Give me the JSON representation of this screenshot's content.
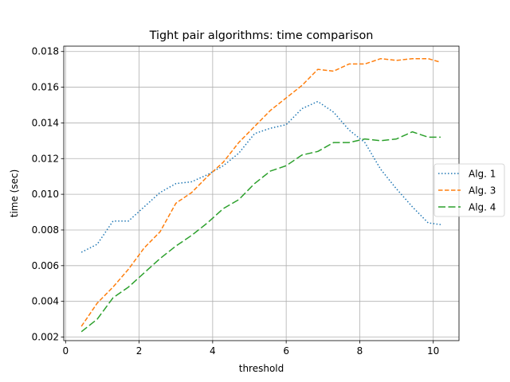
{
  "chart_data": {
    "type": "line",
    "title": "Tight pair algorithms: time comparison",
    "xlabel": "threshold",
    "ylabel": "time (sec)",
    "xlim": [
      -0.05,
      10.7
    ],
    "ylim": [
      0.0018,
      0.0183
    ],
    "grid": true,
    "legend_position": "right",
    "xticks": [
      0,
      2,
      4,
      6,
      8,
      10
    ],
    "xtick_labels": [
      "0",
      "2",
      "4",
      "6",
      "8",
      "10"
    ],
    "yticks": [
      0.002,
      0.004,
      0.006,
      0.008,
      0.01,
      0.012,
      0.014,
      0.016,
      0.018
    ],
    "ytick_labels": [
      "0.002",
      "0.004",
      "0.006",
      "0.008",
      "0.010",
      "0.012",
      "0.014",
      "0.016",
      "0.018"
    ],
    "series": [
      {
        "name": "Alg. 1",
        "color": "#1f77b4",
        "dash": "dotted",
        "x": [
          0.43,
          0.86,
          1.29,
          1.71,
          2.14,
          2.57,
          3.0,
          3.43,
          3.86,
          4.29,
          4.71,
          5.14,
          5.57,
          6.0,
          6.43,
          6.86,
          7.29,
          7.71,
          8.14,
          8.57,
          9.0,
          9.43,
          9.86,
          10.2
        ],
        "y": [
          0.00675,
          0.0072,
          0.0085,
          0.0085,
          0.0093,
          0.0101,
          0.0106,
          0.0107,
          0.0111,
          0.0116,
          0.0123,
          0.0134,
          0.0137,
          0.0139,
          0.0148,
          0.0152,
          0.0146,
          0.0136,
          0.0129,
          0.0114,
          0.0103,
          0.0093,
          0.0084,
          0.0083
        ]
      },
      {
        "name": "Alg. 3",
        "color": "#ff7f0e",
        "dash": "dashed",
        "x": [
          0.43,
          0.86,
          1.29,
          1.71,
          2.14,
          2.57,
          3.0,
          3.43,
          3.86,
          4.29,
          4.71,
          5.14,
          5.57,
          6.0,
          6.43,
          6.86,
          7.29,
          7.71,
          8.14,
          8.57,
          9.0,
          9.43,
          9.86,
          10.2
        ],
        "y": [
          0.0026,
          0.0039,
          0.0048,
          0.0058,
          0.007,
          0.0079,
          0.0095,
          0.0101,
          0.011,
          0.0118,
          0.0129,
          0.0138,
          0.0147,
          0.0154,
          0.0161,
          0.017,
          0.0169,
          0.0173,
          0.0173,
          0.0176,
          0.0175,
          0.0176,
          0.0176,
          0.0174
        ]
      },
      {
        "name": "Alg. 4",
        "color": "#2ca02c",
        "dash": "longdash",
        "x": [
          0.43,
          0.86,
          1.29,
          1.71,
          2.14,
          2.57,
          3.0,
          3.43,
          3.86,
          4.29,
          4.71,
          5.14,
          5.57,
          6.0,
          6.43,
          6.86,
          7.29,
          7.71,
          8.14,
          8.57,
          9.0,
          9.43,
          9.86,
          10.2
        ],
        "y": [
          0.0023,
          0.003,
          0.0042,
          0.0048,
          0.0056,
          0.0064,
          0.0071,
          0.0077,
          0.0084,
          0.0092,
          0.0097,
          0.0106,
          0.0113,
          0.0116,
          0.0122,
          0.0124,
          0.0129,
          0.0129,
          0.0131,
          0.013,
          0.0131,
          0.0135,
          0.0132,
          0.0132
        ]
      }
    ]
  }
}
